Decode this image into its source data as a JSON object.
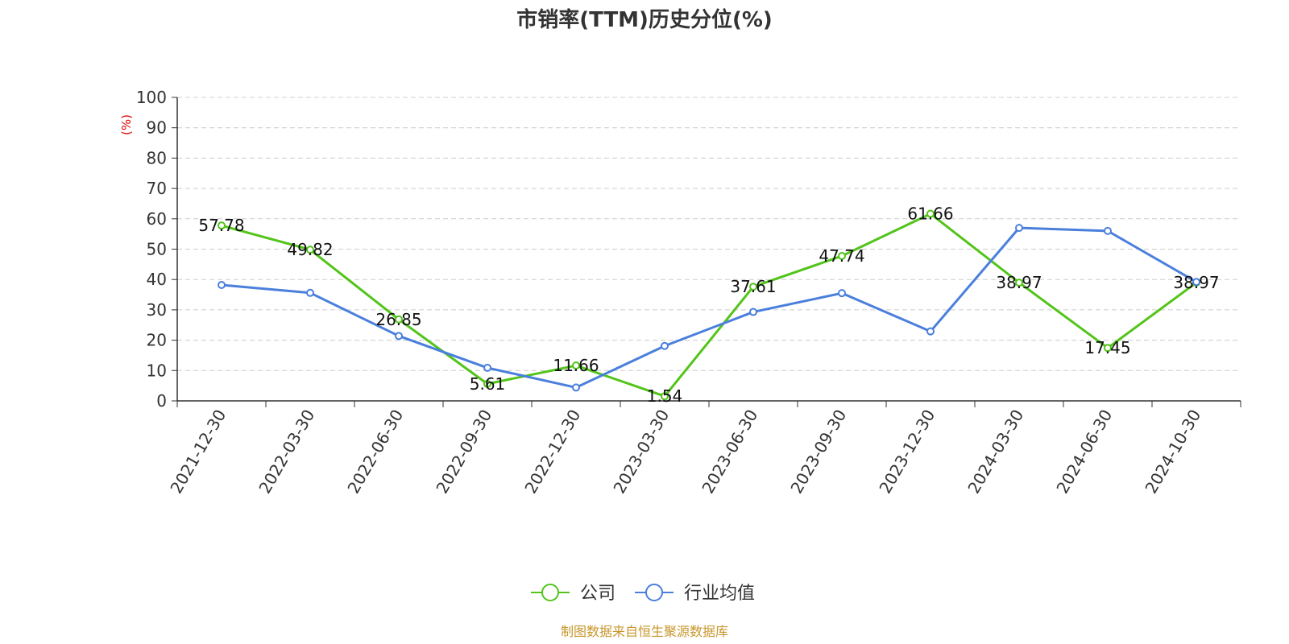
{
  "chart_data": {
    "type": "line",
    "title": "市销率(TTM)历史分位(%)",
    "ylabel": "(%)",
    "ylim": [
      0,
      100
    ],
    "yticks": [
      "0",
      "10",
      "20",
      "30",
      "40",
      "50",
      "60",
      "70",
      "80",
      "90",
      "100"
    ],
    "categories": [
      "2021-12-30",
      "2022-03-30",
      "2022-06-30",
      "2022-09-30",
      "2022-12-30",
      "2023-03-30",
      "2023-06-30",
      "2023-09-30",
      "2023-12-30",
      "2024-03-30",
      "2024-06-30",
      "2024-10-30"
    ],
    "series": [
      {
        "name": "公司",
        "color": "#52c41a",
        "values": [
          57.78,
          49.82,
          26.85,
          5.61,
          11.66,
          1.54,
          37.61,
          47.74,
          61.66,
          38.97,
          17.45,
          38.97
        ],
        "labels": [
          "57.78",
          "49.82",
          "26.85",
          "5.61",
          "11.66",
          "1.54",
          "37.61",
          "47.74",
          "61.66",
          "38.97",
          "17.45",
          "38.97"
        ]
      },
      {
        "name": "行业均值",
        "color": "#4a7fdc",
        "values": [
          38.2,
          35.6,
          21.4,
          10.9,
          4.4,
          18.1,
          29.3,
          35.5,
          22.9,
          57.0,
          56.0,
          39.2
        ]
      }
    ],
    "grid": true,
    "legend_position": "bottom-center"
  },
  "footer": {
    "source": "制图数据来自恒生聚源数据库",
    "source_color": "#c8962a"
  },
  "colors": {
    "axis": "#333333",
    "grid": "#cccccc",
    "unit": "#e00000"
  }
}
